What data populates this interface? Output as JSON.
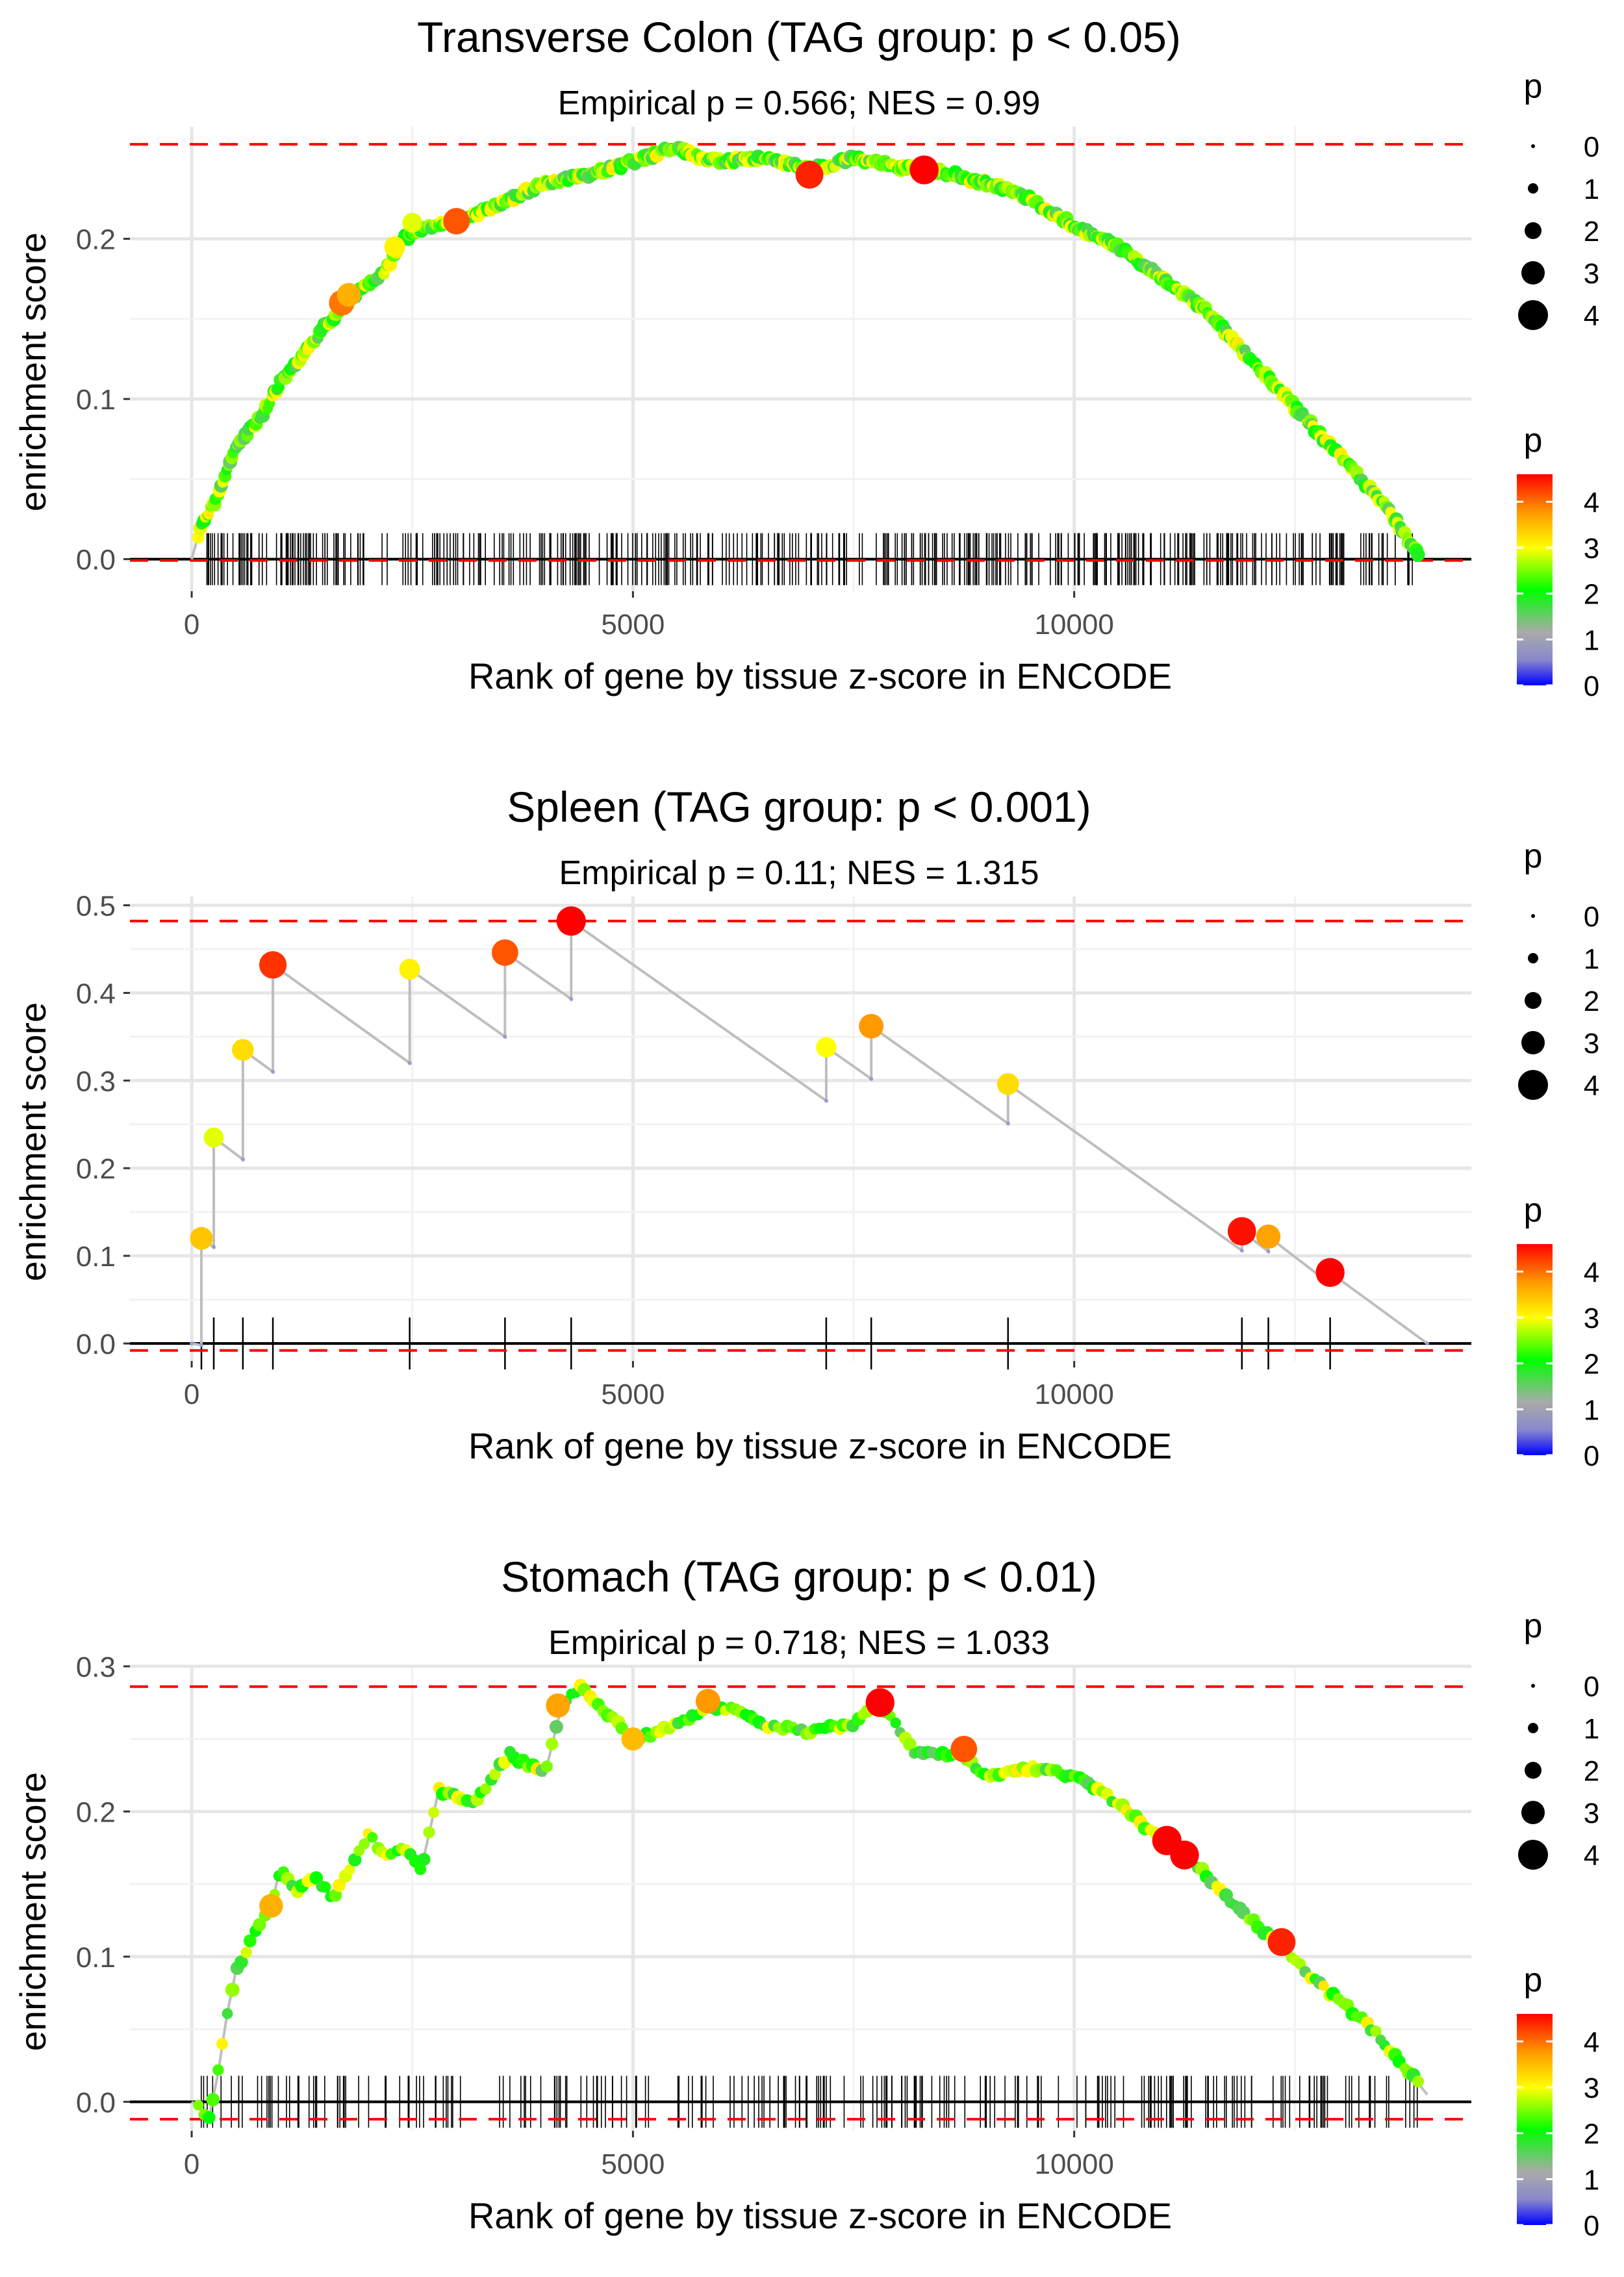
{
  "chart_data": [
    {
      "type": "line",
      "title": "Transverse Colon (TAG group: p < 0.05)",
      "subtitle": "Empirical p = 0.566; NES = 0.99",
      "xlabel": "Rank of gene by tissue z-score in ENCODE",
      "ylabel": "enrichment score",
      "xlim": [
        -700,
        14500
      ],
      "ylim": [
        -0.02,
        0.27
      ],
      "x_ticks": [
        0,
        5000,
        10000
      ],
      "x_tick_labels": [
        "0",
        "5000",
        "10000"
      ],
      "y_ticks": [
        0,
        0.1,
        0.2
      ],
      "y_tick_labels": [
        "0.0",
        "0.1",
        "0.2"
      ],
      "max_es": 0.259,
      "min_es": 0,
      "curve": [
        [
          0,
          0
        ],
        [
          100,
          0.02
        ],
        [
          300,
          0.04
        ],
        [
          500,
          0.07
        ],
        [
          800,
          0.09
        ],
        [
          1000,
          0.11
        ],
        [
          1300,
          0.13
        ],
        [
          1500,
          0.145
        ],
        [
          1800,
          0.163
        ],
        [
          2200,
          0.18
        ],
        [
          2400,
          0.2
        ],
        [
          2700,
          0.208
        ],
        [
          3000,
          0.211
        ],
        [
          3500,
          0.222
        ],
        [
          4000,
          0.235
        ],
        [
          4500,
          0.24
        ],
        [
          5000,
          0.248
        ],
        [
          5500,
          0.258
        ],
        [
          5700,
          0.252
        ],
        [
          6000,
          0.248
        ],
        [
          6500,
          0.25
        ],
        [
          7000,
          0.243
        ],
        [
          7500,
          0.25
        ],
        [
          8000,
          0.245
        ],
        [
          8400,
          0.243
        ],
        [
          9000,
          0.235
        ],
        [
          9500,
          0.225
        ],
        [
          10000,
          0.208
        ],
        [
          10500,
          0.195
        ],
        [
          11000,
          0.175
        ],
        [
          11500,
          0.155
        ],
        [
          12000,
          0.125
        ],
        [
          12500,
          0.095
        ],
        [
          13000,
          0.065
        ],
        [
          13500,
          0.035
        ],
        [
          13900,
          0.003
        ]
      ],
      "dense_points": true,
      "highlight_points": [
        {
          "x": 1700,
          "y": 0.16,
          "p": 3.8
        },
        {
          "x": 1780,
          "y": 0.165,
          "p": 3.4
        },
        {
          "x": 2300,
          "y": 0.195,
          "p": 2.8
        },
        {
          "x": 2500,
          "y": 0.21,
          "p": 2.6
        },
        {
          "x": 3000,
          "y": 0.211,
          "p": 4.0
        },
        {
          "x": 7000,
          "y": 0.24,
          "p": 4.3
        },
        {
          "x": 8300,
          "y": 0.243,
          "p": 4.5
        }
      ],
      "rug": "dense",
      "legend_size": {
        "title": "p",
        "labels": [
          "0",
          "1",
          "2",
          "3",
          "4"
        ]
      },
      "legend_color": {
        "title": "p",
        "labels": [
          "4",
          "3",
          "2",
          "1",
          "0"
        ]
      }
    },
    {
      "type": "line",
      "title": "Spleen (TAG group: p < 0.001)",
      "subtitle": "Empirical p = 0.11; NES = 1.315",
      "xlabel": "Rank of gene by tissue z-score in ENCODE",
      "ylabel": "enrichment score",
      "xlim": [
        -700,
        14500
      ],
      "ylim": [
        -0.02,
        0.51
      ],
      "x_ticks": [
        0,
        5000,
        10000
      ],
      "x_tick_labels": [
        "0",
        "5000",
        "10000"
      ],
      "y_ticks": [
        0,
        0.1,
        0.2,
        0.3,
        0.4,
        0.5
      ],
      "y_tick_labels": [
        "0.0",
        "0.1",
        "0.2",
        "0.3",
        "0.4",
        "0.5"
      ],
      "max_es": 0.482,
      "min_es": -0.008,
      "curve": [
        [
          0,
          0
        ],
        [
          110,
          -0.002
        ],
        [
          110,
          0.12
        ],
        [
          250,
          0.11
        ],
        [
          250,
          0.235
        ],
        [
          580,
          0.21
        ],
        [
          580,
          0.335
        ],
        [
          920,
          0.31
        ],
        [
          920,
          0.432
        ],
        [
          2470,
          0.32
        ],
        [
          2470,
          0.427
        ],
        [
          3550,
          0.35
        ],
        [
          3550,
          0.446
        ],
        [
          4300,
          0.393
        ],
        [
          4300,
          0.482
        ],
        [
          7190,
          0.277
        ],
        [
          7190,
          0.338
        ],
        [
          7700,
          0.302
        ],
        [
          7700,
          0.362
        ],
        [
          9250,
          0.251
        ],
        [
          9250,
          0.296
        ],
        [
          11900,
          0.106
        ],
        [
          11900,
          0.128
        ],
        [
          12200,
          0.105
        ],
        [
          12200,
          0.122
        ],
        [
          12900,
          0.068
        ],
        [
          12900,
          0.081
        ],
        [
          14000,
          0
        ]
      ],
      "dense_points": false,
      "highlight_points": [
        {
          "x": 110,
          "y": 0.12,
          "p": 3.2
        },
        {
          "x": 250,
          "y": 0.235,
          "p": 2.6
        },
        {
          "x": 580,
          "y": 0.335,
          "p": 3.0
        },
        {
          "x": 920,
          "y": 0.432,
          "p": 4.2
        },
        {
          "x": 2470,
          "y": 0.427,
          "p": 2.8
        },
        {
          "x": 3550,
          "y": 0.446,
          "p": 4.0
        },
        {
          "x": 4300,
          "y": 0.482,
          "p": 4.6
        },
        {
          "x": 7190,
          "y": 0.338,
          "p": 2.7
        },
        {
          "x": 7700,
          "y": 0.362,
          "p": 3.6
        },
        {
          "x": 9250,
          "y": 0.296,
          "p": 3.0
        },
        {
          "x": 11900,
          "y": 0.128,
          "p": 4.4
        },
        {
          "x": 12200,
          "y": 0.122,
          "p": 3.5
        },
        {
          "x": 12900,
          "y": 0.081,
          "p": 4.5
        }
      ],
      "rug": [
        110,
        250,
        580,
        920,
        2470,
        3550,
        4300,
        7190,
        7700,
        9250,
        11900,
        12200,
        12900
      ],
      "legend_size": {
        "title": "p",
        "labels": [
          "0",
          "1",
          "2",
          "3",
          "4"
        ]
      },
      "legend_color": {
        "title": "p",
        "labels": [
          "4",
          "3",
          "2",
          "1",
          "0"
        ]
      }
    },
    {
      "type": "line",
      "title": "Stomach (TAG group: p < 0.01)",
      "subtitle": "Empirical p = 0.718; NES = 1.033",
      "xlabel": "Rank of gene by tissue z-score in ENCODE",
      "ylabel": "enrichment score",
      "xlim": [
        -700,
        14500
      ],
      "ylim": [
        -0.02,
        0.3
      ],
      "x_ticks": [
        0,
        5000,
        10000
      ],
      "x_tick_labels": [
        "0",
        "5000",
        "10000"
      ],
      "y_ticks": [
        0,
        0.1,
        0.2,
        0.3
      ],
      "y_tick_labels": [
        "0.0",
        "0.1",
        "0.2",
        "0.3"
      ],
      "max_es": 0.286,
      "min_es": -0.012,
      "curve": [
        [
          0,
          0
        ],
        [
          200,
          -0.01
        ],
        [
          300,
          0.02
        ],
        [
          400,
          0.06
        ],
        [
          500,
          0.09
        ],
        [
          600,
          0.1
        ],
        [
          700,
          0.115
        ],
        [
          900,
          0.135
        ],
        [
          1000,
          0.16
        ],
        [
          1200,
          0.145
        ],
        [
          1400,
          0.155
        ],
        [
          1600,
          0.14
        ],
        [
          1800,
          0.16
        ],
        [
          2000,
          0.185
        ],
        [
          2200,
          0.17
        ],
        [
          2400,
          0.175
        ],
        [
          2600,
          0.16
        ],
        [
          2800,
          0.215
        ],
        [
          3200,
          0.205
        ],
        [
          3600,
          0.24
        ],
        [
          4000,
          0.225
        ],
        [
          4200,
          0.275
        ],
        [
          4400,
          0.286
        ],
        [
          5000,
          0.25
        ],
        [
          5300,
          0.255
        ],
        [
          5800,
          0.27
        ],
        [
          6200,
          0.27
        ],
        [
          6500,
          0.26
        ],
        [
          7000,
          0.255
        ],
        [
          7500,
          0.26
        ],
        [
          7800,
          0.275
        ],
        [
          8200,
          0.24
        ],
        [
          8700,
          0.24
        ],
        [
          9000,
          0.225
        ],
        [
          9500,
          0.23
        ],
        [
          10000,
          0.225
        ],
        [
          10500,
          0.205
        ],
        [
          11000,
          0.18
        ],
        [
          11300,
          0.17
        ],
        [
          11800,
          0.135
        ],
        [
          12300,
          0.11
        ],
        [
          12800,
          0.08
        ],
        [
          13300,
          0.055
        ],
        [
          13800,
          0.02
        ],
        [
          14000,
          0.005
        ]
      ],
      "dense_points": true,
      "highlight_points": [
        {
          "x": 900,
          "y": 0.135,
          "p": 3.4
        },
        {
          "x": 4150,
          "y": 0.273,
          "p": 3.5
        },
        {
          "x": 5000,
          "y": 0.25,
          "p": 3.3
        },
        {
          "x": 5850,
          "y": 0.276,
          "p": 3.6
        },
        {
          "x": 7800,
          "y": 0.275,
          "p": 4.5
        },
        {
          "x": 8750,
          "y": 0.243,
          "p": 4.0
        },
        {
          "x": 11050,
          "y": 0.18,
          "p": 4.6
        },
        {
          "x": 11250,
          "y": 0.17,
          "p": 4.5
        },
        {
          "x": 12350,
          "y": 0.11,
          "p": 4.3
        }
      ],
      "rug": "medium",
      "legend_size": {
        "title": "p",
        "labels": [
          "0",
          "1",
          "2",
          "3",
          "4"
        ]
      },
      "legend_color": {
        "title": "p",
        "labels": [
          "4",
          "3",
          "2",
          "1",
          "0"
        ]
      }
    }
  ]
}
